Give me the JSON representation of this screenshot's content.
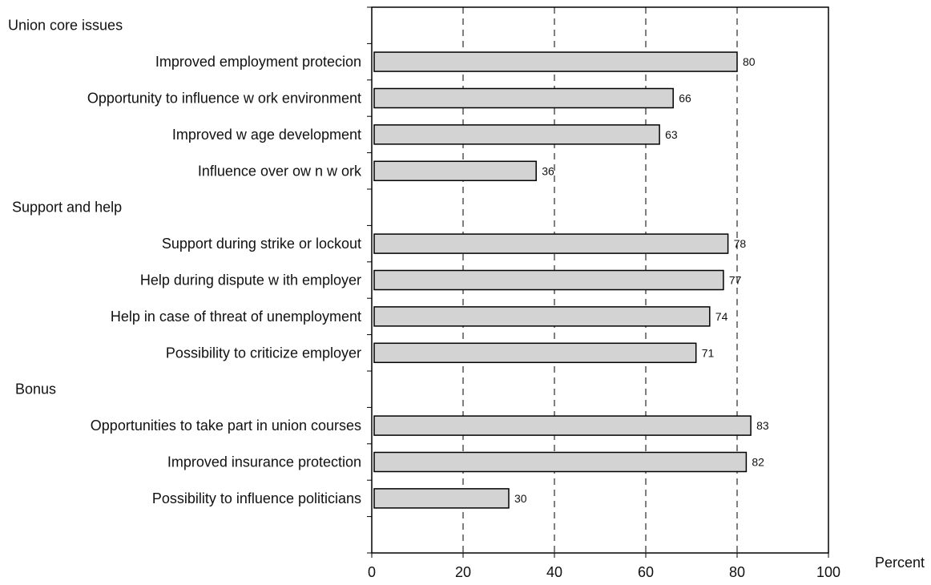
{
  "chart_data": {
    "type": "bar",
    "orientation": "horizontal",
    "xlabel": "Percent",
    "xlim": [
      0,
      100
    ],
    "xticks": [
      "0",
      "20",
      "40",
      "60",
      "80",
      "100"
    ],
    "grid": "vertical dashed",
    "groups": [
      {
        "name": "Union core issues",
        "items": [
          {
            "label": "Improved employment protecion",
            "value": 80
          },
          {
            "label": "Opportunity to influence w ork environment",
            "value": 66
          },
          {
            "label": "Improved w age development",
            "value": 63
          },
          {
            "label": "Influence over ow n w ork",
            "value": 36
          }
        ]
      },
      {
        "name": "Support and help",
        "items": [
          {
            "label": "Support during strike or lockout",
            "value": 78
          },
          {
            "label": "Help during dispute w ith employer",
            "value": 77
          },
          {
            "label": "Help in case of threat of unemployment",
            "value": 74
          },
          {
            "label": "Possibility to criticize employer",
            "value": 71
          }
        ]
      },
      {
        "name": "Bonus",
        "items": [
          {
            "label": "Opportunities to take part in union courses",
            "value": 83
          },
          {
            "label": "Improved insurance protection",
            "value": 82
          },
          {
            "label": "Possibility to influence politicians",
            "value": 30
          }
        ]
      }
    ],
    "colors": {
      "bar_fill": "#d3d3d3",
      "bar_stroke": "#000000",
      "axis": "#000000"
    }
  }
}
